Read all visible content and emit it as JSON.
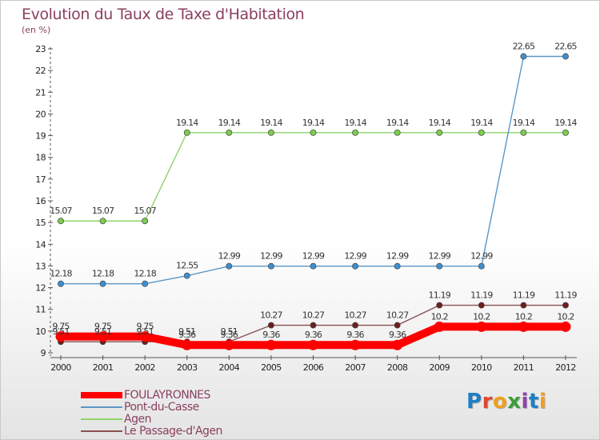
{
  "header": {
    "title": "Evolution du Taux de Taxe d'Habitation",
    "unit": "(en %)"
  },
  "logo": {
    "text": "Proxiti",
    "colors": [
      "#1f7fc4",
      "#e2452d",
      "#f0a020",
      "#3a9e3a",
      "#8e44ad",
      "#1f7fc4",
      "#f0a020"
    ]
  },
  "chart_data": {
    "type": "line",
    "title": "Evolution du Taux de Taxe d'Habitation",
    "ylabel": "(en %)",
    "xlabel": "",
    "categories": [
      "2000",
      "2001",
      "2002",
      "2003",
      "2004",
      "2005",
      "2006",
      "2007",
      "2008",
      "2009",
      "2010",
      "2011",
      "2012"
    ],
    "ylim": [
      9,
      23
    ],
    "yticks": [
      "9",
      "10",
      "11",
      "12",
      "13",
      "14",
      "15",
      "16",
      "17",
      "18",
      "19",
      "20",
      "21",
      "22",
      "23"
    ],
    "grid": false,
    "legend_position": "bottom-left",
    "series": [
      {
        "name": "FOULAYRONNES",
        "color": "#ff0000",
        "values": [
          9.75,
          9.75,
          9.75,
          9.36,
          9.36,
          9.36,
          9.36,
          9.36,
          9.36,
          10.2,
          10.2,
          10.2,
          10.2
        ],
        "labels": [
          "9.75",
          "9.75",
          "9.75",
          "9.36",
          "9.36",
          "9.36",
          "9.36",
          "9.36",
          "9.36",
          "10.2",
          "10.2",
          "10.2",
          "10.2"
        ]
      },
      {
        "name": "Pont-du-Casse",
        "color": "#5b97c6",
        "marker": "#3d8fd0",
        "values": [
          12.18,
          12.18,
          12.18,
          12.55,
          12.99,
          12.99,
          12.99,
          12.99,
          12.99,
          12.99,
          12.99,
          22.65,
          22.65
        ],
        "labels": [
          "12.18",
          "12.18",
          "12.18",
          "12.55",
          "12.99",
          "12.99",
          "12.99",
          "12.99",
          "12.99",
          "12.99",
          "12.99",
          "22.65",
          "22.65"
        ]
      },
      {
        "name": "Agen",
        "color": "#8fd46a",
        "marker": "#7ccd4e",
        "values": [
          15.07,
          15.07,
          15.07,
          19.14,
          19.14,
          19.14,
          19.14,
          19.14,
          19.14,
          19.14,
          19.14,
          19.14,
          19.14
        ],
        "labels": [
          "15.07",
          "15.07",
          "15.07",
          "19.14",
          "19.14",
          "19.14",
          "19.14",
          "19.14",
          "19.14",
          "19.14",
          "19.14",
          "19.14",
          "19.14"
        ]
      },
      {
        "name": "Le Passage-d'Agen",
        "color": "#8a5050",
        "marker": "#6e1e1e",
        "values": [
          9.51,
          9.51,
          9.51,
          9.51,
          9.51,
          10.27,
          10.27,
          10.27,
          10.27,
          11.19,
          11.19,
          11.19,
          11.19
        ],
        "labels": [
          "9.51",
          "9.51",
          "9.51",
          "9.51",
          "9.51",
          "10.27",
          "10.27",
          "10.27",
          "10.27",
          "11.19",
          "11.19",
          "11.19",
          "11.19"
        ]
      }
    ]
  }
}
